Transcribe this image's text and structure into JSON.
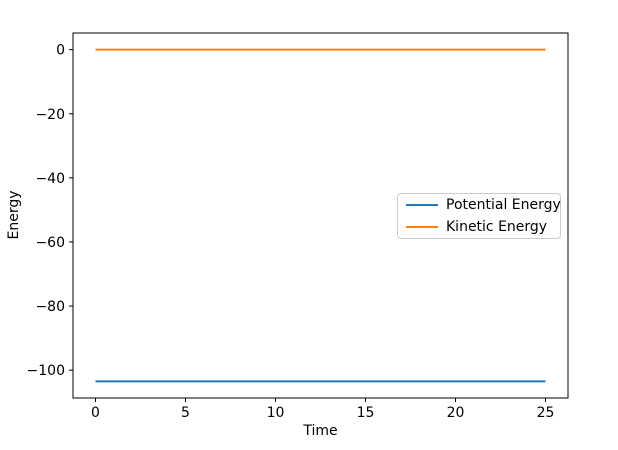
{
  "chart_data": {
    "type": "line",
    "title": "",
    "xlabel": "Time",
    "ylabel": "Energy",
    "x_ticks": [
      0,
      5,
      10,
      15,
      20,
      25
    ],
    "y_ticks": [
      0,
      -20,
      -40,
      -60,
      -80,
      -100
    ],
    "xlim": [
      -1.25,
      26.25
    ],
    "ylim": [
      -108.7,
      5.2
    ],
    "grid": false,
    "legend_position": "center right",
    "series": [
      {
        "name": "Potential Energy",
        "color": "#1f77b4",
        "x": [
          0,
          25
        ],
        "values": [
          -103.5,
          -103.5
        ]
      },
      {
        "name": "Kinetic Energy",
        "color": "#ff7f0e",
        "x": [
          0,
          25
        ],
        "values": [
          0,
          0
        ]
      }
    ]
  },
  "colors": {
    "background": "#ffffff",
    "axis": "#000000",
    "text": "#000000",
    "legend_border": "#cccccc"
  }
}
